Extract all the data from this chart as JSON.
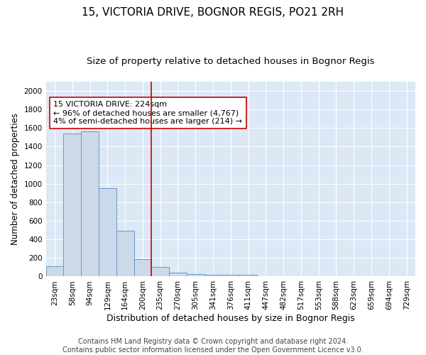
{
  "title": "15, VICTORIA DRIVE, BOGNOR REGIS, PO21 2RH",
  "subtitle": "Size of property relative to detached houses in Bognor Regis",
  "xlabel": "Distribution of detached houses by size in Bognor Regis",
  "ylabel": "Number of detached properties",
  "footer_line1": "Contains HM Land Registry data © Crown copyright and database right 2024.",
  "footer_line2": "Contains public sector information licensed under the Open Government Licence v3.0.",
  "bar_labels": [
    "23sqm",
    "58sqm",
    "94sqm",
    "129sqm",
    "164sqm",
    "200sqm",
    "235sqm",
    "270sqm",
    "305sqm",
    "341sqm",
    "376sqm",
    "411sqm",
    "447sqm",
    "482sqm",
    "517sqm",
    "553sqm",
    "588sqm",
    "623sqm",
    "659sqm",
    "694sqm",
    "729sqm"
  ],
  "bar_values": [
    110,
    1540,
    1565,
    950,
    490,
    190,
    100,
    40,
    25,
    15,
    15,
    15,
    0,
    0,
    0,
    0,
    0,
    0,
    0,
    0,
    0
  ],
  "bar_color": "#ccd9e8",
  "bar_edge_color": "#6699cc",
  "vline_x": 5.5,
  "vline_color": "#cc0000",
  "annotation_text": "15 VICTORIA DRIVE: 224sqm\n← 96% of detached houses are smaller (4,767)\n4% of semi-detached houses are larger (214) →",
  "annotation_box_color": "#ffffff",
  "annotation_box_edge": "#cc0000",
  "ylim": [
    0,
    2100
  ],
  "yticks": [
    0,
    200,
    400,
    600,
    800,
    1000,
    1200,
    1400,
    1600,
    1800,
    2000
  ],
  "background_color": "#ffffff",
  "plot_bg_color": "#dce8f5",
  "grid_color": "#ffffff",
  "title_fontsize": 11,
  "subtitle_fontsize": 9.5,
  "xlabel_fontsize": 9,
  "ylabel_fontsize": 8.5,
  "tick_fontsize": 7.5,
  "annotation_fontsize": 8,
  "footer_fontsize": 7
}
